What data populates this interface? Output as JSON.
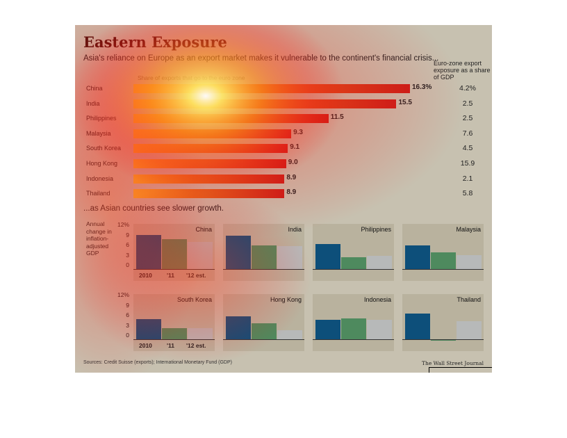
{
  "header": {
    "title": "Eastern Exposure",
    "subtitle": "Asia's reliance on Europe as an export market makes it vulnerable to the continent's financial crisis...",
    "column_header": "Euro-zone export exposure as a share of GDP",
    "axis_note": "Share of exports that go to the euro zone"
  },
  "section_two": {
    "title": "...as Asian countries see slower growth.",
    "y_label": "Annual change in inflation-adjusted GDP",
    "y_ticks": [
      "12%",
      "9",
      "6",
      "3",
      "0"
    ],
    "x_ticks": [
      "2010",
      "'11",
      "'12 est."
    ]
  },
  "footer": {
    "sources": "Sources: Credit Suisse (exports); International Monetary Fund (GDP)",
    "publisher": "The Wall Street Journal"
  },
  "colors": {
    "bar_start": "#f4c430",
    "bar_end": "#c81e1a",
    "series_2010": "#0d4f7a",
    "series_2011": "#4e8a5e",
    "series_2012": "#b7b9b9",
    "panel_bg": "#b9b29e",
    "background": "#c7c1b0"
  },
  "chart_data": [
    {
      "type": "bar",
      "orientation": "horizontal",
      "title": "Share of exports that go to the euro zone",
      "categories": [
        "China",
        "India",
        "Philippines",
        "Malaysia",
        "South Korea",
        "Hong Kong",
        "Indonesia",
        "Thailand"
      ],
      "values": [
        16.3,
        15.5,
        11.5,
        9.3,
        9.1,
        9.0,
        8.9,
        8.9
      ],
      "value_labels": [
        "16.3%",
        "15.5",
        "11.5",
        "9.3",
        "9.1",
        "9.0",
        "8.9",
        "8.9"
      ]
    },
    {
      "type": "table",
      "title": "Euro-zone export exposure as a share of GDP",
      "categories": [
        "China",
        "India",
        "Philippines",
        "Malaysia",
        "South Korea",
        "Hong Kong",
        "Indonesia",
        "Thailand"
      ],
      "values": [
        4.2,
        2.5,
        2.5,
        7.6,
        4.5,
        15.9,
        2.1,
        5.8
      ],
      "value_labels": [
        "4.2%",
        "2.5",
        "2.5",
        "7.6",
        "4.5",
        "15.9",
        "2.1",
        "5.8"
      ]
    },
    {
      "type": "bar",
      "title": "...as Asian countries see slower growth.",
      "ylabel": "Annual change in inflation-adjusted GDP",
      "categories": [
        "2010",
        "'11",
        "'12 est."
      ],
      "ylim": [
        0,
        12
      ],
      "panels": [
        {
          "name": "China",
          "values": [
            10.4,
            9.2,
            8.2
          ]
        },
        {
          "name": "India",
          "values": [
            10.1,
            7.3,
            7.0
          ]
        },
        {
          "name": "Philippines",
          "values": [
            7.6,
            3.7,
            4.2
          ]
        },
        {
          "name": "Malaysia",
          "values": [
            7.2,
            5.2,
            4.4
          ]
        },
        {
          "name": "South Korea",
          "values": [
            6.2,
            3.6,
            3.5
          ]
        },
        {
          "name": "Hong Kong",
          "values": [
            7.0,
            5.0,
            2.9
          ]
        },
        {
          "name": "Indonesia",
          "values": [
            6.1,
            6.4,
            6.0
          ]
        },
        {
          "name": "Thailand",
          "values": [
            7.8,
            0.1,
            5.5
          ]
        }
      ]
    }
  ]
}
